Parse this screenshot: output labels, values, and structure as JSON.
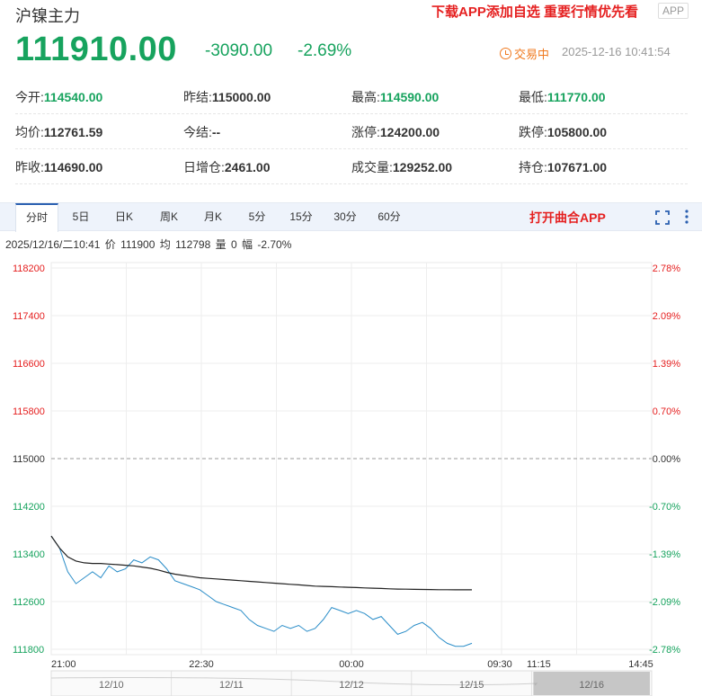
{
  "header": {
    "name": "沪镍主力",
    "promo": "下载APP添加自选 重要行情优先看",
    "app_badge": "APP"
  },
  "quote": {
    "price": "111910.00",
    "change": "-3090.00",
    "change_pct": "-2.69%",
    "status": "交易中",
    "datetime": "2025-12-16 10:41:54"
  },
  "stats": [
    [
      {
        "label": "今开:",
        "value": "114540.00",
        "color": "green"
      },
      {
        "label": "昨结:",
        "value": "115000.00",
        "color": "normal"
      },
      {
        "label": "最高:",
        "value": "114590.00",
        "color": "green"
      },
      {
        "label": "最低:",
        "value": "111770.00",
        "color": "green"
      }
    ],
    [
      {
        "label": "均价:",
        "value": "112761.59",
        "color": "normal"
      },
      {
        "label": "今结:",
        "value": "--",
        "color": "normal"
      },
      {
        "label": "涨停:",
        "value": "124200.00",
        "color": "normal"
      },
      {
        "label": "跌停:",
        "value": "105800.00",
        "color": "normal"
      }
    ],
    [
      {
        "label": "昨收:",
        "value": "114690.00",
        "color": "normal"
      },
      {
        "label": "日增仓:",
        "value": "2461.00",
        "color": "normal"
      },
      {
        "label": "成交量:",
        "value": "129252.00",
        "color": "normal"
      },
      {
        "label": "持仓:",
        "value": "107671.00",
        "color": "normal"
      }
    ]
  ],
  "tabs": [
    "分时",
    "5日",
    "日K",
    "周K",
    "月K",
    "5分",
    "15分",
    "30分",
    "60分"
  ],
  "active_tab": 0,
  "open_app": "打开曲合APP",
  "icons": {
    "fullscreen": "fullscreen-icon",
    "more": "more-vertical-icon",
    "status": "clock-icon"
  },
  "infobar": {
    "time": "2025/12/16/二10:41",
    "price_label": "价",
    "price": "111900",
    "avg_label": "均",
    "avg": "112798",
    "vol_label": "量",
    "vol": "0",
    "pct_label": "幅",
    "pct": "-2.70%"
  },
  "colors": {
    "green": "#17a35e",
    "red": "#e52020",
    "price_line": "#2a8dc8",
    "avg_line": "#222222"
  },
  "chart_data": {
    "type": "line",
    "y_ticks": [
      "118200",
      "117400",
      "116600",
      "115800",
      "115000",
      "114200",
      "113400",
      "112600",
      "111800"
    ],
    "y_values": [
      118200,
      117400,
      116600,
      115800,
      115000,
      114200,
      113400,
      112600,
      111800
    ],
    "pct_ticks": [
      "2.78%",
      "2.09%",
      "1.39%",
      "0.70%",
      "0.00%",
      "-0.70%",
      "-1.39%",
      "-2.09%",
      "-2.78%"
    ],
    "x_ticks": [
      "21:00",
      "22:30",
      "00:00",
      "09:30",
      "11:15",
      "14:45"
    ],
    "ylim": [
      111800,
      118200
    ],
    "baseline": 115000,
    "navigator_labels": [
      "12/10",
      "12/11",
      "12/12",
      "12/15",
      "12/16"
    ],
    "series": [
      {
        "values": [
          113700,
          113500,
          113100,
          112900,
          113000,
          113100,
          113000,
          113200,
          113100,
          113150,
          113300,
          113250,
          113350,
          113300,
          113150,
          112950,
          112900,
          112850,
          112800,
          112700,
          112600,
          112550,
          112500,
          112450,
          112300,
          112200,
          112150,
          112100,
          112200,
          112150,
          112200,
          112100,
          112150,
          112300,
          112500,
          112450,
          112400,
          112450,
          112400,
          112300,
          112350,
          112200,
          112050,
          112100,
          112200,
          112250,
          112150,
          112000,
          111900,
          111850,
          111850,
          111900
        ]
      },
      {
        "values": [
          113700,
          113500,
          113350,
          113280,
          113250,
          113240,
          113240,
          113230,
          113220,
          113210,
          113200,
          113180,
          113160,
          113130,
          113090,
          113060,
          113040,
          113020,
          113000,
          112990,
          112980,
          112970,
          112960,
          112950,
          112940,
          112930,
          112920,
          112910,
          112900,
          112890,
          112880,
          112870,
          112860,
          112855,
          112850,
          112845,
          112840,
          112835,
          112830,
          112825,
          112820,
          112815,
          112810,
          112808,
          112806,
          112804,
          112802,
          112800,
          112799,
          112798,
          112798,
          112798
        ]
      }
    ]
  }
}
